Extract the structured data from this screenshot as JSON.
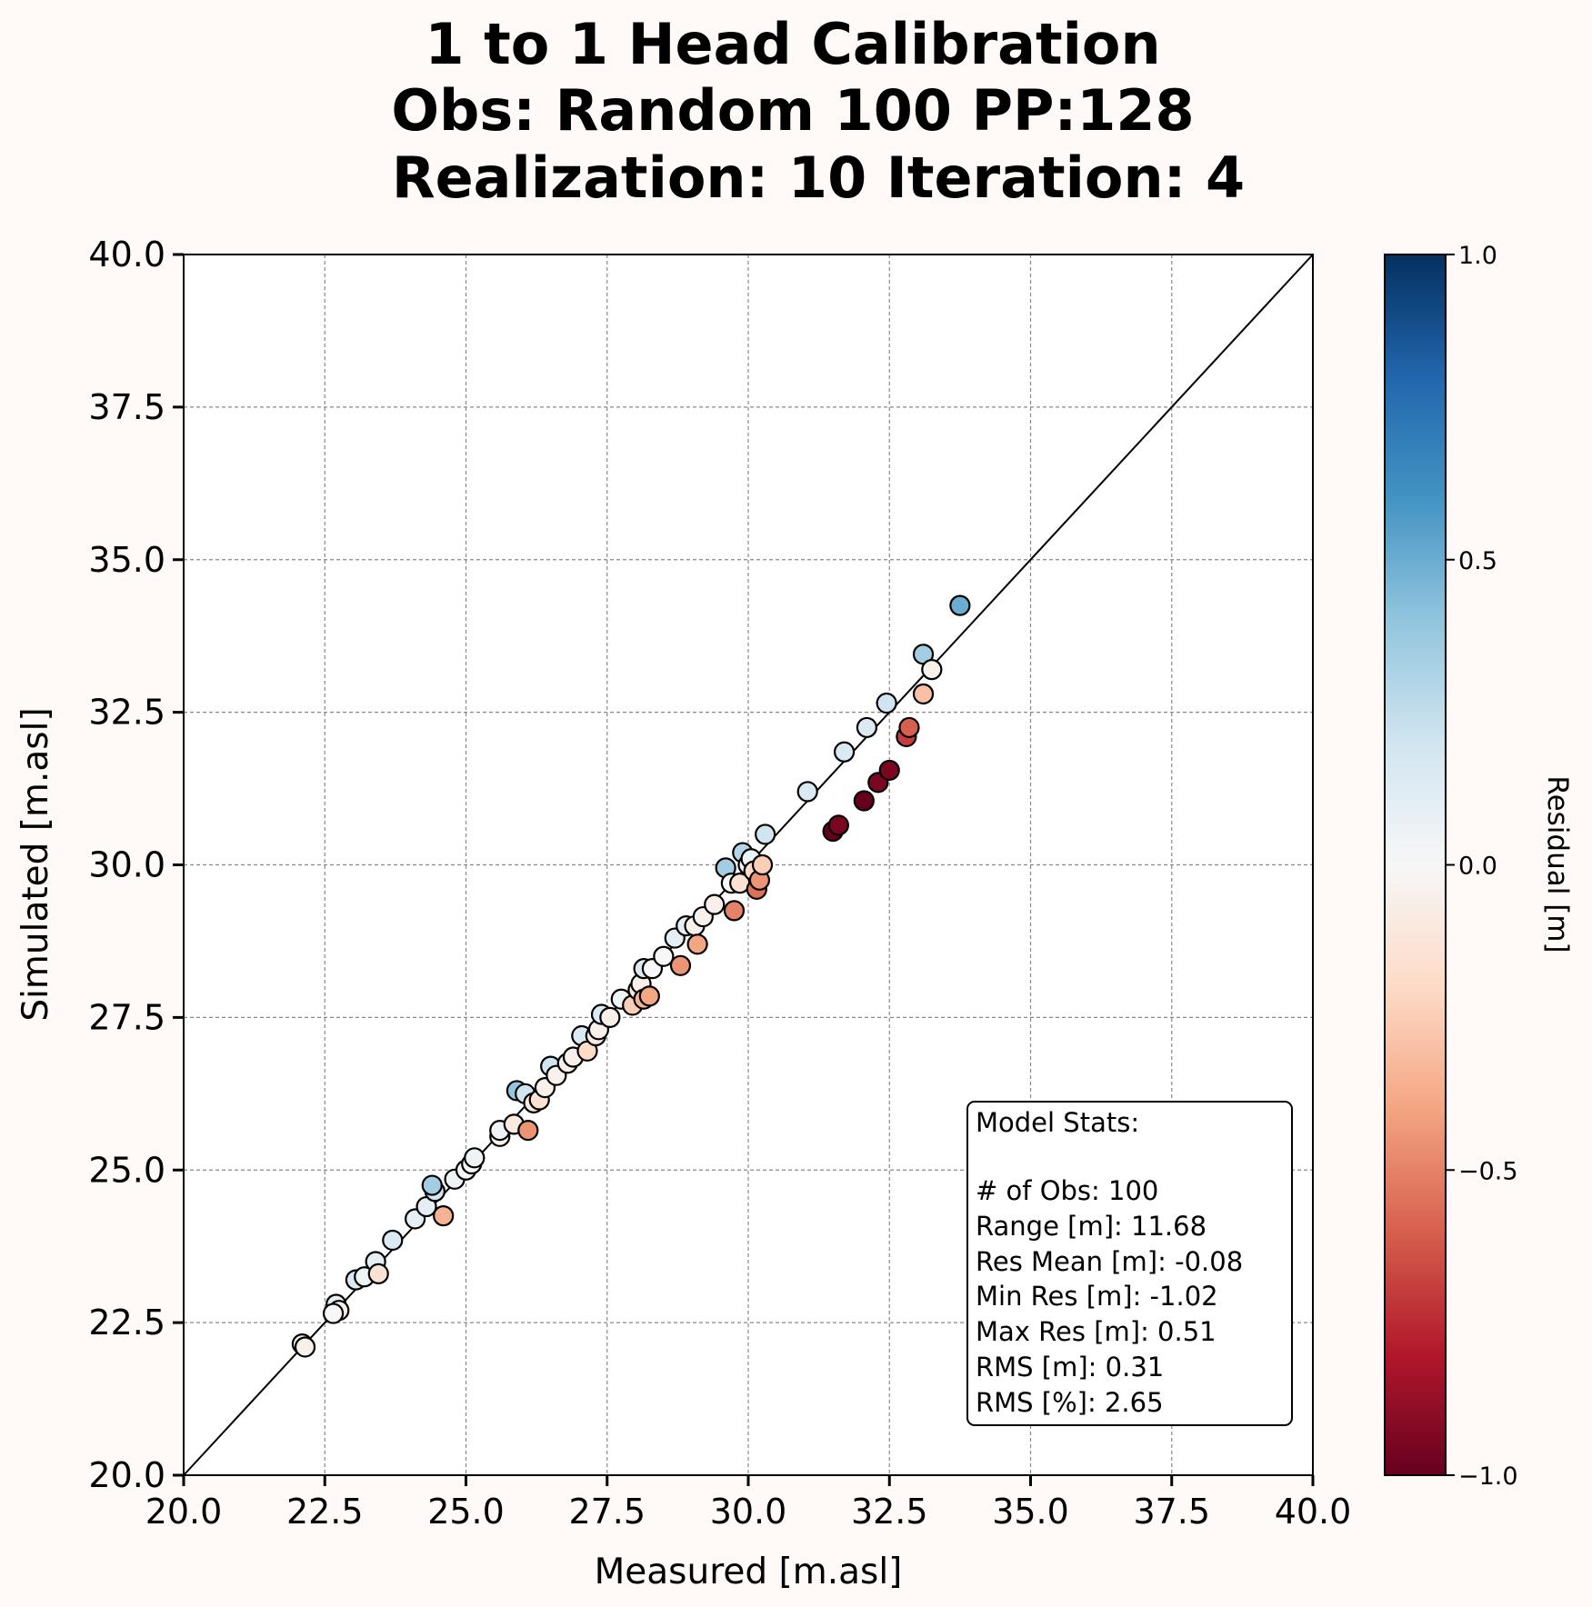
{
  "title": {
    "line1": "1 to 1 Head Calibration",
    "line2": "Obs: Random 100    PP:128",
    "line3": "Realization: 10  Iteration: 4"
  },
  "colorbar": {
    "label": "Residual [m]",
    "ticks": [
      1.0,
      0.5,
      0.0,
      -0.5,
      -1.0
    ],
    "tick_labels": [
      "1.0",
      "0.5",
      "0.0",
      "−0.5",
      "−1.0"
    ],
    "colormap": "RdBu",
    "colors": [
      "#67001f",
      "#b2182b",
      "#d6604d",
      "#f4a582",
      "#fddbc7",
      "#f7f7f7",
      "#d1e5f0",
      "#92c5de",
      "#4393c3",
      "#2166ac",
      "#053061"
    ]
  },
  "stats": {
    "header": "Model Stats:",
    "lines": [
      "# of Obs: 100",
      "Range [m]: 11.68",
      "Res Mean [m]: -0.08",
      "Min Res [m]: -1.02",
      "Max Res [m]: 0.51",
      "RMS [m]: 0.31",
      "RMS [%]: 2.65"
    ]
  },
  "chart_data": {
    "type": "scatter",
    "xlabel": "Measured [m.asl]",
    "ylabel": "Simulated [m.asl]",
    "xlim": [
      20,
      40
    ],
    "ylim": [
      20,
      40
    ],
    "xticks": [
      20,
      22.5,
      25,
      27.5,
      30,
      32.5,
      35,
      37.5,
      40
    ],
    "yticks": [
      20,
      22.5,
      25,
      27.5,
      30,
      32.5,
      35,
      37.5,
      40
    ],
    "xtick_labels": [
      "20.0",
      "22.5",
      "25.0",
      "27.5",
      "30.0",
      "32.5",
      "35.0",
      "37.5",
      "40.0"
    ],
    "ytick_labels": [
      "20.0",
      "22.5",
      "25.0",
      "27.5",
      "30.0",
      "32.5",
      "35.0",
      "37.5",
      "40.0"
    ],
    "grid": true,
    "one_to_one_line": true,
    "points": [
      {
        "x": 22.1,
        "y": 22.15,
        "r": 0.05
      },
      {
        "x": 22.15,
        "y": 22.1,
        "r": -0.05
      },
      {
        "x": 22.7,
        "y": 22.8,
        "r": 0.1
      },
      {
        "x": 22.75,
        "y": 22.7,
        "r": -0.05
      },
      {
        "x": 22.65,
        "y": 22.65,
        "r": 0.0
      },
      {
        "x": 23.05,
        "y": 23.2,
        "r": 0.15
      },
      {
        "x": 23.2,
        "y": 23.25,
        "r": 0.05
      },
      {
        "x": 23.4,
        "y": 23.5,
        "r": 0.1
      },
      {
        "x": 23.45,
        "y": 23.3,
        "r": -0.15
      },
      {
        "x": 23.7,
        "y": 23.85,
        "r": 0.15
      },
      {
        "x": 24.1,
        "y": 24.2,
        "r": 0.1
      },
      {
        "x": 24.3,
        "y": 24.4,
        "r": 0.1
      },
      {
        "x": 24.45,
        "y": 24.65,
        "r": 0.2
      },
      {
        "x": 24.4,
        "y": 24.75,
        "r": 0.35
      },
      {
        "x": 24.6,
        "y": 24.25,
        "r": -0.35
      },
      {
        "x": 24.8,
        "y": 24.85,
        "r": 0.05
      },
      {
        "x": 25.0,
        "y": 25.0,
        "r": 0.0
      },
      {
        "x": 25.1,
        "y": 25.1,
        "r": 0.0
      },
      {
        "x": 25.15,
        "y": 25.2,
        "r": 0.05
      },
      {
        "x": 25.6,
        "y": 25.55,
        "r": -0.05
      },
      {
        "x": 25.6,
        "y": 25.65,
        "r": 0.05
      },
      {
        "x": 25.85,
        "y": 25.75,
        "r": -0.1
      },
      {
        "x": 25.9,
        "y": 26.3,
        "r": 0.4
      },
      {
        "x": 26.05,
        "y": 26.25,
        "r": 0.2
      },
      {
        "x": 26.1,
        "y": 25.65,
        "r": -0.45
      },
      {
        "x": 26.2,
        "y": 26.1,
        "r": -0.1
      },
      {
        "x": 26.3,
        "y": 26.15,
        "r": -0.15
      },
      {
        "x": 26.4,
        "y": 26.35,
        "r": -0.05
      },
      {
        "x": 26.5,
        "y": 26.7,
        "r": 0.2
      },
      {
        "x": 26.6,
        "y": 26.55,
        "r": -0.05
      },
      {
        "x": 26.8,
        "y": 26.75,
        "r": -0.05
      },
      {
        "x": 26.9,
        "y": 26.85,
        "r": -0.05
      },
      {
        "x": 27.05,
        "y": 27.2,
        "r": 0.15
      },
      {
        "x": 27.15,
        "y": 26.95,
        "r": -0.2
      },
      {
        "x": 27.3,
        "y": 27.2,
        "r": -0.1
      },
      {
        "x": 27.35,
        "y": 27.3,
        "r": -0.05
      },
      {
        "x": 27.4,
        "y": 27.55,
        "r": 0.15
      },
      {
        "x": 27.55,
        "y": 27.5,
        "r": -0.05
      },
      {
        "x": 27.75,
        "y": 27.8,
        "r": 0.05
      },
      {
        "x": 27.95,
        "y": 27.7,
        "r": -0.25
      },
      {
        "x": 28.05,
        "y": 27.95,
        "r": -0.1
      },
      {
        "x": 28.1,
        "y": 28.05,
        "r": -0.05
      },
      {
        "x": 28.15,
        "y": 28.3,
        "r": 0.15
      },
      {
        "x": 28.15,
        "y": 27.8,
        "r": -0.35
      },
      {
        "x": 28.25,
        "y": 27.85,
        "r": -0.4
      },
      {
        "x": 28.3,
        "y": 28.3,
        "r": 0.0
      },
      {
        "x": 28.5,
        "y": 28.5,
        "r": 0.0
      },
      {
        "x": 28.7,
        "y": 28.8,
        "r": 0.1
      },
      {
        "x": 28.8,
        "y": 28.35,
        "r": -0.45
      },
      {
        "x": 28.9,
        "y": 29.0,
        "r": 0.1
      },
      {
        "x": 29.05,
        "y": 29.0,
        "r": -0.05
      },
      {
        "x": 29.1,
        "y": 28.7,
        "r": -0.4
      },
      {
        "x": 29.2,
        "y": 29.15,
        "r": -0.05
      },
      {
        "x": 29.4,
        "y": 29.35,
        "r": -0.05
      },
      {
        "x": 29.6,
        "y": 29.95,
        "r": 0.35
      },
      {
        "x": 29.7,
        "y": 29.7,
        "r": 0.0
      },
      {
        "x": 29.75,
        "y": 29.25,
        "r": -0.5
      },
      {
        "x": 29.85,
        "y": 29.7,
        "r": -0.15
      },
      {
        "x": 29.9,
        "y": 30.2,
        "r": 0.3
      },
      {
        "x": 30.0,
        "y": 30.0,
        "r": 0.0
      },
      {
        "x": 30.05,
        "y": 30.1,
        "r": 0.05
      },
      {
        "x": 30.1,
        "y": 29.9,
        "r": -0.2
      },
      {
        "x": 30.15,
        "y": 29.6,
        "r": -0.55
      },
      {
        "x": 30.2,
        "y": 29.75,
        "r": -0.45
      },
      {
        "x": 30.25,
        "y": 30.0,
        "r": -0.25
      },
      {
        "x": 30.3,
        "y": 30.5,
        "r": 0.2
      },
      {
        "x": 31.05,
        "y": 31.2,
        "r": 0.15
      },
      {
        "x": 31.5,
        "y": 30.55,
        "r": -1.0
      },
      {
        "x": 31.6,
        "y": 30.65,
        "r": -0.95
      },
      {
        "x": 31.7,
        "y": 31.85,
        "r": 0.15
      },
      {
        "x": 32.05,
        "y": 31.05,
        "r": -1.0
      },
      {
        "x": 32.1,
        "y": 32.25,
        "r": 0.15
      },
      {
        "x": 32.3,
        "y": 31.35,
        "r": -0.95
      },
      {
        "x": 32.45,
        "y": 32.65,
        "r": 0.2
      },
      {
        "x": 32.5,
        "y": 31.55,
        "r": -0.95
      },
      {
        "x": 32.8,
        "y": 32.1,
        "r": -0.7
      },
      {
        "x": 32.85,
        "y": 32.25,
        "r": -0.6
      },
      {
        "x": 33.1,
        "y": 33.45,
        "r": 0.35
      },
      {
        "x": 33.1,
        "y": 32.8,
        "r": -0.3
      },
      {
        "x": 33.25,
        "y": 33.2,
        "r": -0.05
      },
      {
        "x": 33.75,
        "y": 34.25,
        "r": 0.5
      }
    ]
  }
}
